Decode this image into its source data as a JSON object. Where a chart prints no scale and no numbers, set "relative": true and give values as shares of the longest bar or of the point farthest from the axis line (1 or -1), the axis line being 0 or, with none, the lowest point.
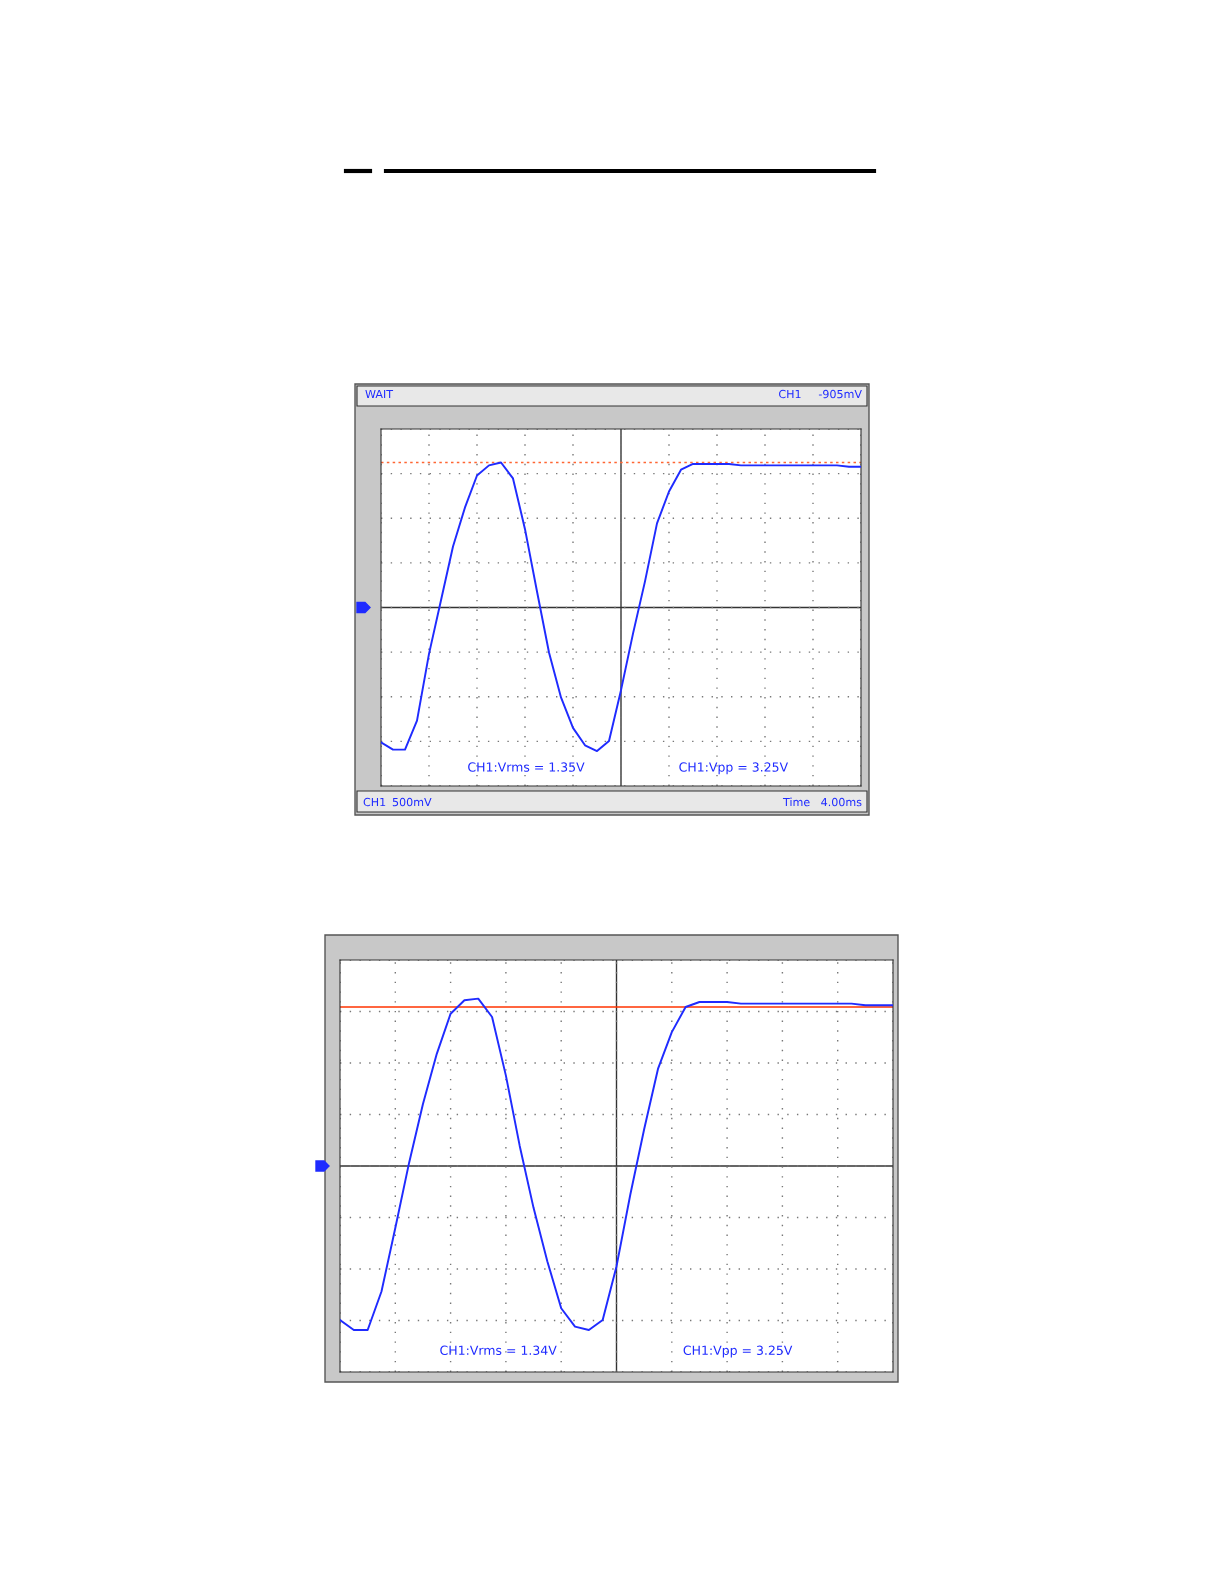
{
  "chart_data": [
    {
      "type": "line",
      "relative": true,
      "categories": [
        null,
        null,
        null,
        null,
        null,
        null,
        null,
        null,
        null,
        null,
        null,
        null,
        null,
        null,
        null,
        null,
        null,
        null,
        null,
        null,
        null,
        null,
        null,
        null,
        null,
        null,
        null,
        null,
        null,
        null,
        null,
        null,
        null,
        null,
        null,
        null,
        null,
        null,
        null,
        null,
        null
      ],
      "grid": true,
      "line_style": "solid",
      "series": [
        {
          "color": "#1f2bff",
          "values": [
            -0.93,
            -0.98,
            -0.98,
            -0.78,
            -0.32,
            0.05,
            0.42,
            0.69,
            0.91,
            0.98,
            1.0,
            0.89,
            0.54,
            0.11,
            -0.31,
            -0.62,
            -0.83,
            -0.95,
            -0.99,
            -0.92,
            -0.57,
            -0.18,
            0.18,
            0.58,
            0.8,
            0.95,
            0.99,
            0.99,
            0.99,
            0.99,
            0.98,
            0.98,
            0.98,
            0.98,
            0.98,
            0.98,
            0.98,
            0.98,
            0.98,
            0.97,
            0.97
          ]
        }
      ],
      "ref_lines": [
        {
          "axis": "y",
          "value": 1.0,
          "color": "#ff6633",
          "line_style": "dotted"
        }
      ],
      "annotations": [
        "CH1:Vrms = 1.35V",
        "CH1:Vpp = 3.25V",
        "WAIT",
        "CH1",
        "-905mV",
        "CH1",
        "500mV",
        "Time",
        "4.00ms"
      ]
    },
    {
      "type": "line",
      "relative": true,
      "categories": [
        null,
        null,
        null,
        null,
        null,
        null,
        null,
        null,
        null,
        null,
        null,
        null,
        null,
        null,
        null,
        null,
        null,
        null,
        null,
        null,
        null,
        null,
        null,
        null,
        null,
        null,
        null,
        null,
        null,
        null,
        null,
        null,
        null,
        null,
        null,
        null,
        null,
        null,
        null,
        null,
        null
      ],
      "grid": true,
      "line_style": "solid",
      "series": [
        {
          "color": "#1f2bff",
          "values": [
            -0.92,
            -0.98,
            -0.98,
            -0.75,
            -0.37,
            0.02,
            0.37,
            0.67,
            0.91,
            0.99,
            1.0,
            0.89,
            0.54,
            0.12,
            -0.25,
            -0.57,
            -0.85,
            -0.96,
            -0.98,
            -0.92,
            -0.6,
            -0.17,
            0.22,
            0.58,
            0.8,
            0.95,
            0.98,
            0.98,
            0.98,
            0.97,
            0.97,
            0.97,
            0.97,
            0.97,
            0.97,
            0.97,
            0.97,
            0.97,
            0.96,
            0.96,
            0.96
          ]
        }
      ],
      "ref_lines": [
        {
          "axis": "y",
          "value": 0.95,
          "color": "#ff3300",
          "line_style": "solid"
        }
      ],
      "annotations": [
        "CH1:Vrms = 1.34V",
        "CH1:Vpp = 3.25V"
      ]
    }
  ]
}
